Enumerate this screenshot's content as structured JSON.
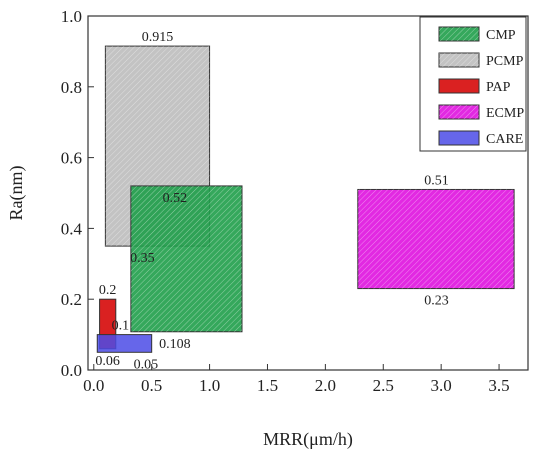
{
  "chart_data": {
    "type": "rectangle-range",
    "xlabel": "MRR(μm/h)",
    "ylabel": "Ra(nm)",
    "xlim": [
      -0.05,
      3.75
    ],
    "ylim": [
      0,
      1.0
    ],
    "xticks": [
      "0.0",
      "0.5",
      "1.0",
      "1.5",
      "2.0",
      "2.5",
      "3.0",
      "3.5"
    ],
    "xtick_values": [
      0,
      0.5,
      1.0,
      1.5,
      2.0,
      2.5,
      3.0,
      3.5
    ],
    "yticks": [
      "0.0",
      "0.2",
      "0.4",
      "0.6",
      "0.8",
      "1.0"
    ],
    "ytick_values": [
      0,
      0.2,
      0.4,
      0.6,
      0.8,
      1.0
    ],
    "grid": false,
    "legend_position": "top-right",
    "series": [
      {
        "name": "CMP",
        "color": "#1f9e4a",
        "hatch": true,
        "opacity": 0.9,
        "x_range": [
          0.32,
          1.28
        ],
        "y_range": [
          0.108,
          0.52
        ],
        "labels": [
          {
            "text": "0.52",
            "x": 0.32,
            "y": 0.52,
            "anchor": "top-left"
          },
          {
            "text": "0.108",
            "x": 0.7,
            "y": 0.108,
            "anchor": "below"
          }
        ]
      },
      {
        "name": "PCMP",
        "color": "#b8b8b8",
        "hatch": true,
        "opacity": 0.85,
        "x_range": [
          0.1,
          1.0
        ],
        "y_range": [
          0.35,
          0.915
        ],
        "labels": [
          {
            "text": "0.915",
            "x": 0.55,
            "y": 0.915,
            "anchor": "above"
          },
          {
            "text": "0.35",
            "x": 0.42,
            "y": 0.35,
            "anchor": "below"
          }
        ]
      },
      {
        "name": "PAP",
        "color": "#d81515",
        "hatch": false,
        "opacity": 0.95,
        "x_range": [
          0.05,
          0.19
        ],
        "y_range": [
          0.06,
          0.2
        ],
        "labels": [
          {
            "text": "0.2",
            "x": 0.12,
            "y": 0.2,
            "anchor": "above"
          },
          {
            "text": "0.06",
            "x": 0.12,
            "y": 0.06,
            "anchor": "below"
          }
        ]
      },
      {
        "name": "ECMP",
        "color": "#e01de0",
        "hatch": true,
        "opacity": 0.95,
        "x_range": [
          2.28,
          3.63
        ],
        "y_range": [
          0.23,
          0.51
        ],
        "labels": [
          {
            "text": "0.51",
            "x": 2.96,
            "y": 0.51,
            "anchor": "above"
          },
          {
            "text": "0.23",
            "x": 2.96,
            "y": 0.23,
            "anchor": "below"
          }
        ]
      },
      {
        "name": "CARE",
        "color": "#4b4be6",
        "hatch": false,
        "opacity": 0.85,
        "x_range": [
          0.03,
          0.5
        ],
        "y_range": [
          0.05,
          0.1
        ],
        "labels": [
          {
            "text": "0.1",
            "x": 0.23,
            "y": 0.1,
            "anchor": "above"
          },
          {
            "text": "0.05",
            "x": 0.45,
            "y": 0.05,
            "anchor": "below"
          }
        ]
      }
    ]
  }
}
